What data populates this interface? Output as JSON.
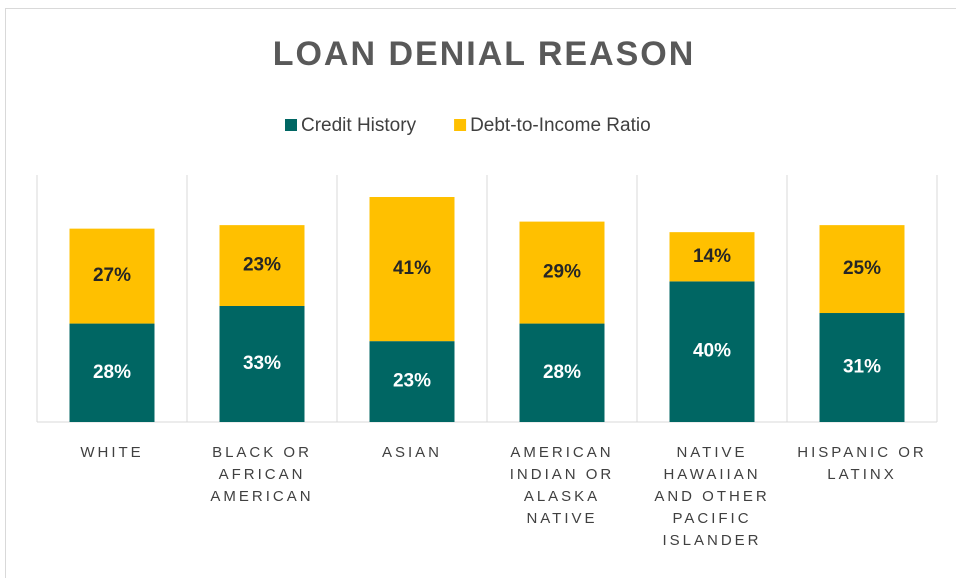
{
  "chart_data": {
    "type": "stacked_bar",
    "title": "LOAN DENIAL REASON",
    "categories": [
      "WHITE",
      "BLACK OR AFRICAN AMERICAN",
      "ASIAN",
      "AMERICAN INDIAN OR ALASKA NATIVE",
      "NATIVE HAWAIIAN AND OTHER PACIFIC ISLANDER",
      "HISPANIC OR LATINX"
    ],
    "series": [
      {
        "name": "Credit History",
        "color": "#006663",
        "values": [
          28,
          33,
          23,
          28,
          40,
          31
        ],
        "value_labels": [
          "28%",
          "33%",
          "23%",
          "28%",
          "40%",
          "31%"
        ]
      },
      {
        "name": "Debt-to-Income Ratio",
        "color": "#ffc000",
        "values": [
          27,
          23,
          41,
          29,
          14,
          25
        ],
        "value_labels": [
          "27%",
          "23%",
          "41%",
          "29%",
          "14%",
          "25%"
        ]
      }
    ],
    "legend": "top"
  }
}
